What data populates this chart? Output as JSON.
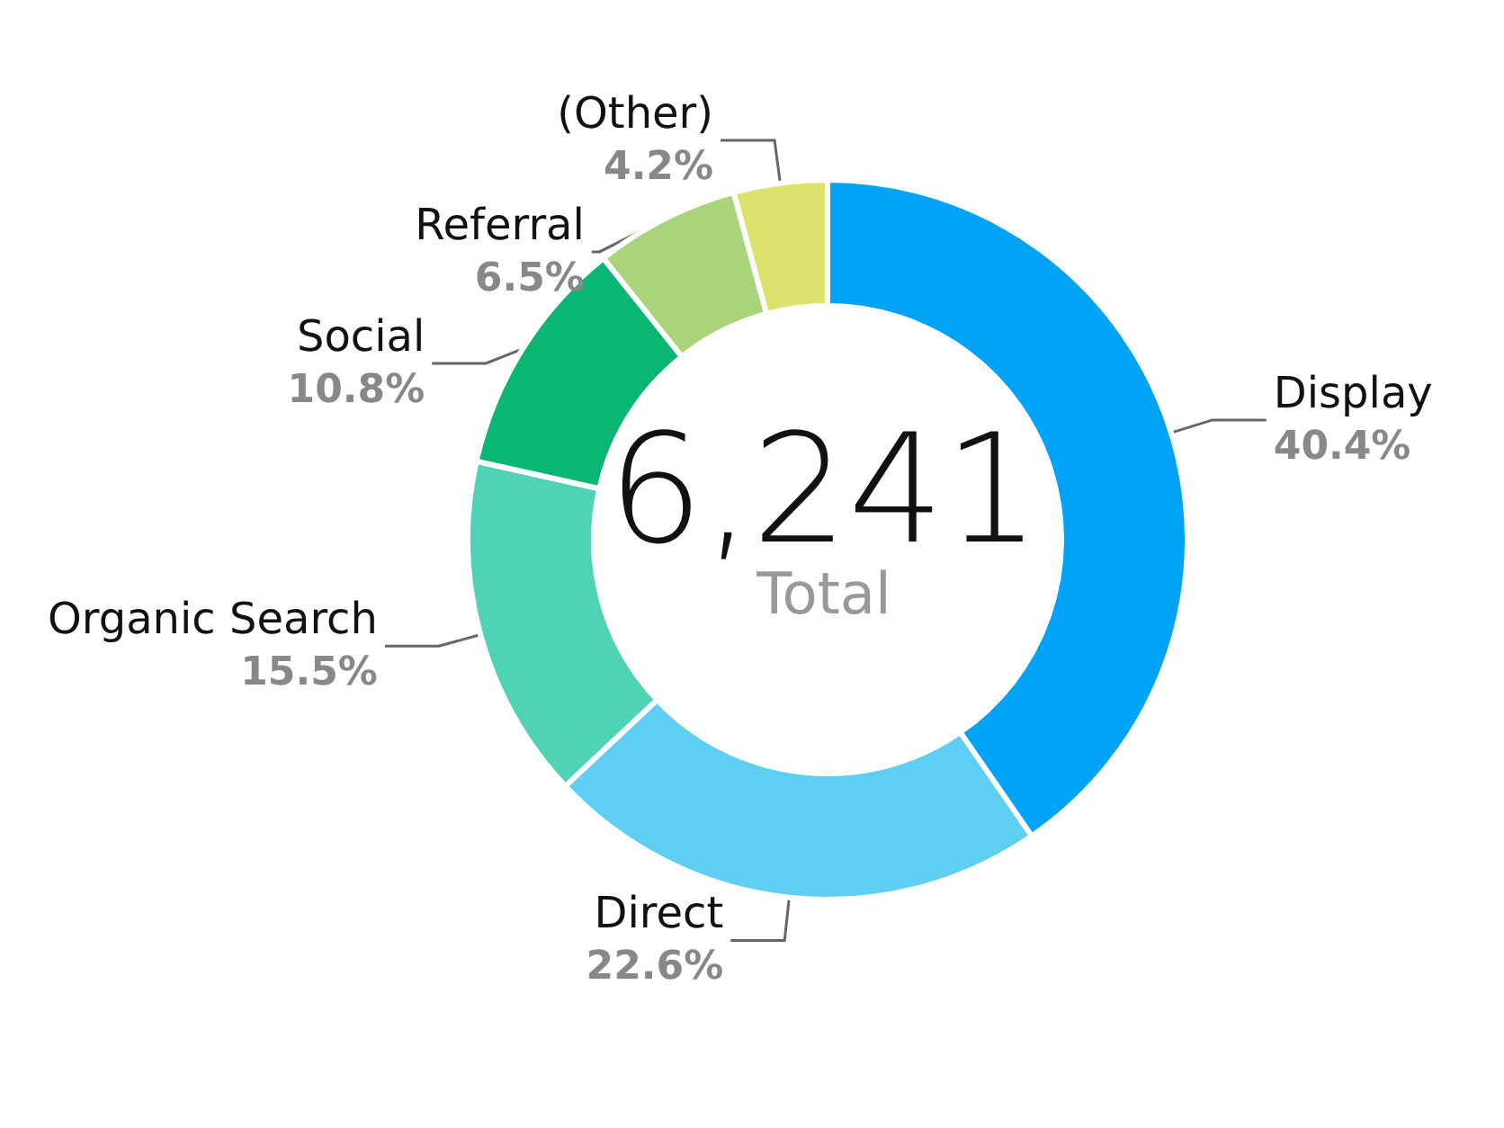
{
  "chart_data": {
    "type": "donut",
    "categories": [
      "Display",
      "Direct",
      "Organic Search",
      "Social",
      "Referral",
      "(Other)"
    ],
    "values": [
      40.4,
      22.6,
      15.5,
      10.8,
      6.5,
      4.2
    ],
    "value_labels": [
      "40.4%",
      "22.6%",
      "15.5%",
      "10.8%",
      "6.5%",
      "4.2%"
    ],
    "colors": [
      "#00a3f5",
      "#5ecff2",
      "#4fd2b6",
      "#0bb573",
      "#a9d47c",
      "#dde26c"
    ],
    "annotations": [
      "6,241",
      "Total"
    ],
    "legend": false
  }
}
